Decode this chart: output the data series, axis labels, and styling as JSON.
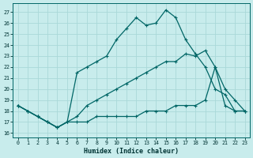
{
  "xlabel": "Humidex (Indice chaleur)",
  "bg_color": "#c8ecec",
  "grid_color": "#aad8d8",
  "line_color": "#006666",
  "xlim": [
    -0.5,
    23.5
  ],
  "ylim": [
    15.6,
    27.8
  ],
  "yticks": [
    16,
    17,
    18,
    19,
    20,
    21,
    22,
    23,
    24,
    25,
    26,
    27
  ],
  "xticks": [
    0,
    1,
    2,
    3,
    4,
    5,
    6,
    7,
    8,
    9,
    10,
    11,
    12,
    13,
    14,
    15,
    16,
    17,
    18,
    19,
    20,
    21,
    22,
    23
  ],
  "line_top_x": [
    0,
    1,
    2,
    3,
    4,
    5,
    6,
    7,
    8,
    9,
    10,
    11,
    12,
    13,
    14,
    15,
    16,
    17,
    18,
    19,
    20,
    21,
    22,
    23
  ],
  "line_top_y": [
    18.5,
    18.0,
    17.5,
    17.0,
    16.5,
    17.0,
    21.5,
    22.0,
    22.5,
    23.0,
    24.5,
    25.5,
    26.5,
    25.8,
    26.0,
    27.2,
    26.5,
    24.5,
    23.2,
    22.0,
    20.0,
    19.5,
    18.0,
    18.0
  ],
  "line_mid_x": [
    0,
    1,
    2,
    3,
    4,
    5,
    6,
    7,
    8,
    9,
    10,
    11,
    12,
    13,
    14,
    15,
    16,
    17,
    18,
    19,
    20,
    21,
    22,
    23
  ],
  "line_mid_y": [
    18.5,
    18.0,
    17.5,
    17.0,
    16.5,
    17.0,
    17.5,
    18.5,
    19.0,
    19.5,
    20.0,
    20.5,
    21.0,
    21.5,
    22.0,
    22.5,
    22.5,
    23.2,
    23.0,
    23.5,
    22.0,
    20.0,
    19.0,
    18.0
  ],
  "line_bot_x": [
    0,
    1,
    2,
    3,
    4,
    5,
    6,
    7,
    8,
    9,
    10,
    11,
    12,
    13,
    14,
    15,
    16,
    17,
    18,
    19,
    20,
    21,
    22,
    23
  ],
  "line_bot_y": [
    18.5,
    18.0,
    17.5,
    17.0,
    16.5,
    17.0,
    17.0,
    17.0,
    17.5,
    17.5,
    17.5,
    17.5,
    17.5,
    18.0,
    18.0,
    18.0,
    18.5,
    18.5,
    18.5,
    19.0,
    22.0,
    18.5,
    18.0,
    18.0
  ]
}
